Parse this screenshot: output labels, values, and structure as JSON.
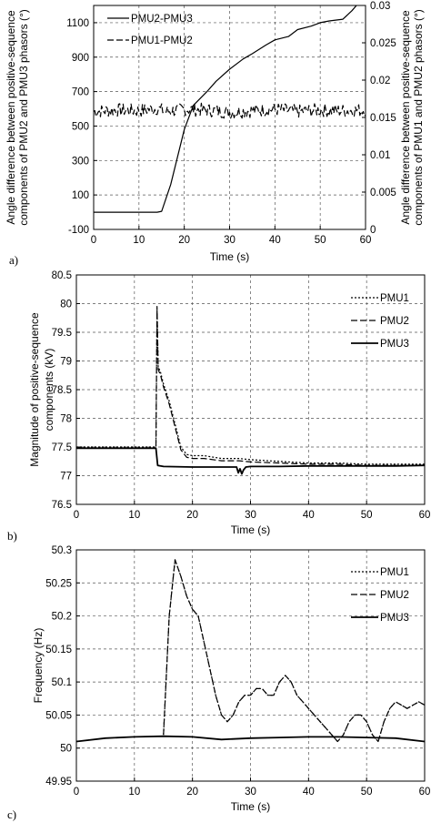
{
  "figure": {
    "panels": [
      {
        "label": "a)"
      },
      {
        "label": "b)"
      },
      {
        "label": "c)"
      }
    ]
  },
  "chart_data": [
    {
      "type": "line",
      "panel": "a)",
      "xlabel": "Time (s)",
      "ylabel": [
        "Angle difference between positive-sequence",
        "components of PMU2 and PMU3 phasors (°)"
      ],
      "ylabel_right": [
        "Angle difference between positive-sequence",
        "components of PMU1 and PMU2 phasors (°)"
      ],
      "xlim": [
        0,
        60
      ],
      "ylim": [
        -100,
        1200
      ],
      "ylim_right": [
        0,
        0.03
      ],
      "xticks": [
        0,
        10,
        20,
        30,
        40,
        50,
        60
      ],
      "yticks": [
        -100,
        100,
        300,
        500,
        700,
        900,
        1100
      ],
      "yticks_right": [
        "0",
        "0.005",
        "0.01",
        "0.015",
        "0.02",
        "0.025",
        "0.03"
      ],
      "grid": true,
      "legend_position": "top-left",
      "series": [
        {
          "name": "PMU2-PMU3",
          "axis": "left",
          "style": "solid",
          "x": [
            0,
            14,
            15,
            17,
            20,
            22,
            25,
            27,
            30,
            33,
            35,
            38,
            40,
            43,
            45,
            48,
            50,
            52,
            55,
            57,
            58
          ],
          "y": [
            0,
            0,
            5,
            160,
            480,
            620,
            700,
            760,
            830,
            890,
            920,
            970,
            1000,
            1020,
            1060,
            1080,
            1100,
            1110,
            1120,
            1170,
            1200
          ]
        },
        {
          "name": "PMU1-PMU2",
          "axis": "right",
          "style": "dashed",
          "noisy": true,
          "x": [
            0,
            5,
            10,
            14,
            16,
            20,
            25,
            30,
            35,
            40,
            45,
            50,
            55,
            60
          ],
          "y": [
            0.0158,
            0.016,
            0.0159,
            0.0162,
            0.0158,
            0.0161,
            0.016,
            0.0157,
            0.0159,
            0.0161,
            0.0158,
            0.016,
            0.0159,
            0.016
          ]
        }
      ]
    },
    {
      "type": "line",
      "panel": "b)",
      "xlabel": "Time (s)",
      "ylabel": [
        "Magnitude of positive-sequence",
        "components (kV)"
      ],
      "xlim": [
        0,
        60
      ],
      "ylim": [
        76.5,
        80.5
      ],
      "xticks": [
        0,
        10,
        20,
        30,
        40,
        50,
        60
      ],
      "yticks": [
        76.5,
        77,
        77.5,
        78,
        78.5,
        79,
        79.5,
        80,
        80.5
      ],
      "grid": true,
      "legend_position": "top-right",
      "series": [
        {
          "name": "PMU1",
          "style": "dotted",
          "x": [
            0,
            13.7,
            13.9,
            14.1,
            14.5,
            15,
            16,
            17,
            18,
            19,
            20,
            22,
            25,
            28,
            30,
            35,
            40,
            45,
            50,
            55,
            60
          ],
          "y": [
            77.5,
            77.5,
            79.9,
            78.9,
            78.8,
            78.6,
            78.3,
            77.9,
            77.5,
            77.37,
            77.35,
            77.35,
            77.3,
            77.3,
            77.28,
            77.25,
            77.22,
            77.22,
            77.2,
            77.2,
            77.2
          ]
        },
        {
          "name": "PMU2",
          "style": "dashed",
          "x": [
            0,
            13.7,
            13.9,
            14.1,
            14.5,
            15,
            16,
            17,
            18,
            19,
            20,
            22,
            25,
            28,
            30,
            35,
            40,
            45,
            50,
            55,
            60
          ],
          "y": [
            77.48,
            77.48,
            79.95,
            78.85,
            78.75,
            78.55,
            78.25,
            77.85,
            77.45,
            77.32,
            77.3,
            77.3,
            77.26,
            77.26,
            77.24,
            77.22,
            77.2,
            77.2,
            77.18,
            77.18,
            77.18
          ]
        },
        {
          "name": "PMU3",
          "style": "solid",
          "x": [
            0,
            13.7,
            14,
            15,
            20,
            25,
            27.6,
            27.9,
            28.2,
            28.5,
            28.8,
            29.2,
            30,
            35,
            40,
            45,
            50,
            55,
            60
          ],
          "y": [
            77.48,
            77.48,
            77.18,
            77.16,
            77.15,
            77.15,
            77.15,
            77.05,
            77.12,
            77.03,
            77.1,
            77.15,
            77.16,
            77.16,
            77.17,
            77.17,
            77.17,
            77.17,
            77.18
          ]
        }
      ]
    },
    {
      "type": "line",
      "panel": "c)",
      "xlabel": "Time (s)",
      "ylabel": [
        "Frequency (Hz)"
      ],
      "xlim": [
        0,
        60
      ],
      "ylim": [
        49.95,
        50.3
      ],
      "xticks": [
        0,
        10,
        20,
        30,
        40,
        50,
        60
      ],
      "yticks": [
        49.95,
        50,
        50.05,
        50.1,
        50.15,
        50.2,
        50.25,
        50.3
      ],
      "grid": true,
      "legend_position": "top-right",
      "series": [
        {
          "name": "PMU1",
          "style": "dotted",
          "x": [
            15,
            16,
            17,
            18,
            19,
            20,
            21,
            22,
            23,
            24,
            25,
            26,
            27,
            28,
            29,
            30,
            31,
            32,
            33,
            34,
            35,
            36,
            37,
            38,
            39,
            40,
            41,
            42,
            43,
            44,
            45,
            46,
            47,
            48,
            49,
            50,
            51,
            52,
            53,
            54,
            55,
            56,
            57,
            58,
            59,
            60
          ],
          "y": [
            50.02,
            50.2,
            50.285,
            50.26,
            50.23,
            50.21,
            50.2,
            50.16,
            50.12,
            50.08,
            50.05,
            50.04,
            50.05,
            50.07,
            50.08,
            50.08,
            50.09,
            50.09,
            50.08,
            50.08,
            50.1,
            50.11,
            50.1,
            50.08,
            50.07,
            50.06,
            50.05,
            50.04,
            50.03,
            50.02,
            50.01,
            50.02,
            50.04,
            50.05,
            50.05,
            50.04,
            50.02,
            50.01,
            50.04,
            50.06,
            50.07,
            50.065,
            50.06,
            50.065,
            50.07,
            50.065
          ]
        },
        {
          "name": "PMU2",
          "style": "dashed",
          "x": [
            15,
            16,
            17,
            18,
            19,
            20,
            21,
            22,
            23,
            24,
            25,
            26,
            27,
            28,
            29,
            30,
            31,
            32,
            33,
            34,
            35,
            36,
            37,
            38,
            39,
            40,
            41,
            42,
            43,
            44,
            45,
            46,
            47,
            48,
            49,
            50,
            51,
            52,
            53,
            54,
            55,
            56,
            57,
            58,
            59,
            60
          ],
          "y": [
            50.02,
            50.2,
            50.285,
            50.26,
            50.23,
            50.21,
            50.2,
            50.16,
            50.12,
            50.08,
            50.05,
            50.04,
            50.05,
            50.07,
            50.08,
            50.08,
            50.09,
            50.09,
            50.08,
            50.08,
            50.1,
            50.11,
            50.1,
            50.08,
            50.07,
            50.06,
            50.05,
            50.04,
            50.03,
            50.02,
            50.01,
            50.02,
            50.04,
            50.05,
            50.05,
            50.04,
            50.02,
            50.01,
            50.04,
            50.06,
            50.07,
            50.065,
            50.06,
            50.065,
            50.07,
            50.065
          ]
        },
        {
          "name": "PMU3",
          "style": "solid",
          "x": [
            0,
            5,
            10,
            15,
            20,
            25,
            30,
            35,
            40,
            45,
            50,
            55,
            60
          ],
          "y": [
            50.01,
            50.015,
            50.017,
            50.018,
            50.017,
            50.013,
            50.015,
            50.016,
            50.017,
            50.017,
            50.016,
            50.015,
            50.01
          ]
        }
      ]
    }
  ]
}
